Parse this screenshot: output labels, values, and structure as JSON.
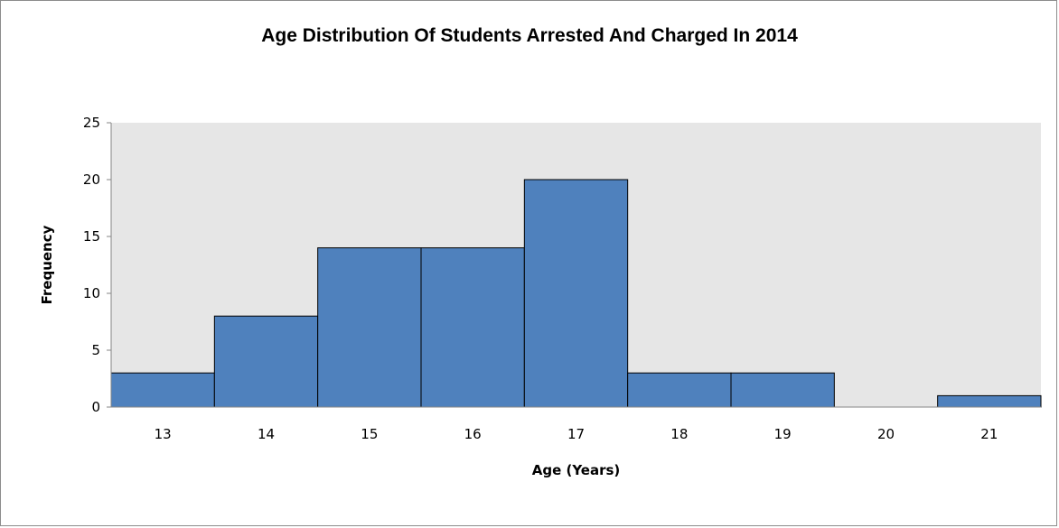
{
  "chart_data": {
    "type": "bar",
    "title": "Age Distribution Of Students Arrested And Charged In 2014",
    "xlabel": "Age (Years)",
    "ylabel": "Frequency",
    "categories": [
      "13",
      "14",
      "15",
      "16",
      "17",
      "18",
      "19",
      "20",
      "21"
    ],
    "values": [
      3,
      8,
      14,
      14,
      20,
      3,
      3,
      0,
      1
    ],
    "ylim": [
      0,
      25
    ],
    "yticks": [
      "0",
      "5",
      "10",
      "15",
      "20",
      "25"
    ],
    "grid": false,
    "legend": "none",
    "colors": {
      "bar": "#4f81bd",
      "bar_edge": "#000000",
      "plot_bg": "#e6e6e6"
    }
  }
}
